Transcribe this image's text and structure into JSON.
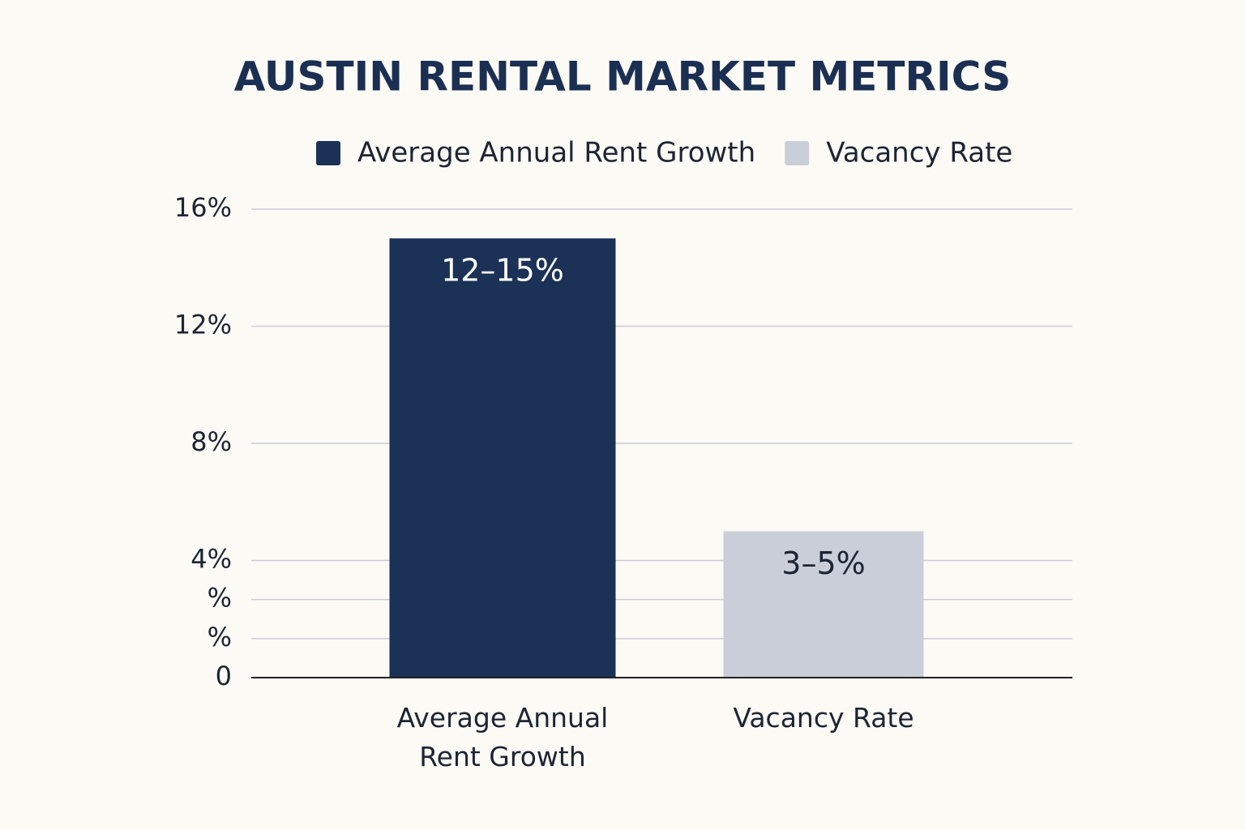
{
  "chart_data": {
    "type": "bar",
    "title": "AUSTIN RENTAL MARKET METRICS",
    "categories": [
      "Average Annual Rent Growth",
      "Vacancy Rate"
    ],
    "values": [
      15,
      5
    ],
    "value_labels": [
      "12–15%",
      "3–5%"
    ],
    "colors": [
      "#1b3156",
      "#c9ced8"
    ],
    "ylim": [
      0,
      16
    ],
    "yticks": [
      0,
      {
        "value": 1.333,
        "label": "%"
      },
      {
        "value": 2.667,
        "label": "%"
      },
      {
        "value": 4,
        "label": "4%"
      },
      {
        "value": 8,
        "label": "8%"
      },
      {
        "value": 12,
        "label": "12%"
      },
      {
        "value": 16,
        "label": "16%"
      }
    ],
    "grid": true,
    "legend": "top"
  }
}
